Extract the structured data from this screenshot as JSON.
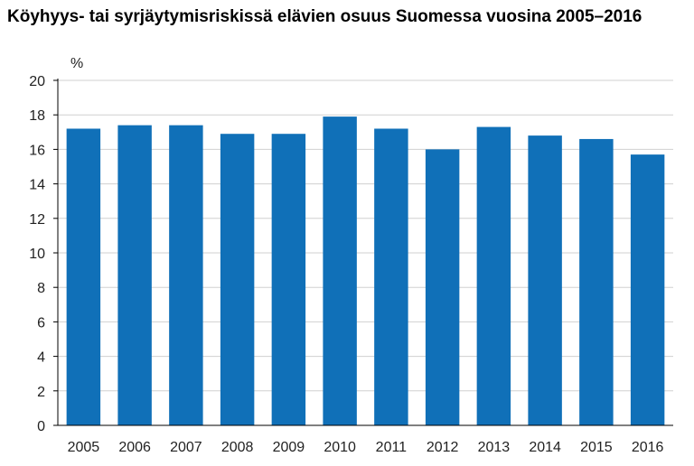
{
  "chart_data": {
    "type": "bar",
    "title": "Köyhyys- tai syrjäytymisriskissä elävien osuus Suomessa vuosina 2005–2016",
    "ylabel": "%",
    "xlabel": "",
    "categories": [
      "2005",
      "2006",
      "2007",
      "2008",
      "2009",
      "2010",
      "2011",
      "2012",
      "2013",
      "2014",
      "2015",
      "2016"
    ],
    "values": [
      17.2,
      17.4,
      17.4,
      16.9,
      16.9,
      17.9,
      17.2,
      16.0,
      17.3,
      16.8,
      16.6,
      15.7
    ],
    "ylim": [
      0,
      20
    ],
    "yticks": [
      "0",
      "2",
      "4",
      "6",
      "8",
      "10",
      "12",
      "14",
      "16",
      "18",
      "20"
    ],
    "grid": true,
    "bar_color": "#1070b8",
    "grid_color": "#d0d0d0",
    "axis_color": "#000000"
  }
}
